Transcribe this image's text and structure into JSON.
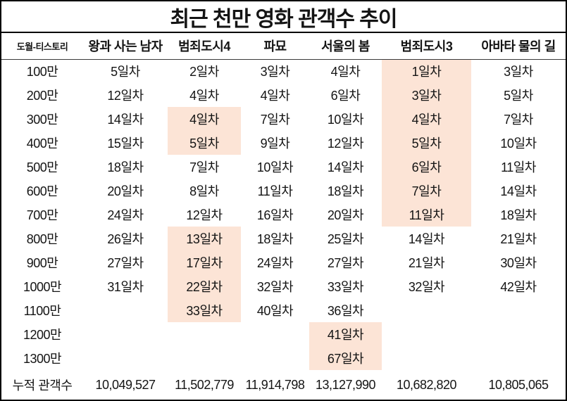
{
  "colors": {
    "highlight": "#FCE4D6",
    "border": "#000000",
    "text": "#141414"
  },
  "chart_data": {
    "type": "table",
    "title": "최근 천만 영화 관객수 추이",
    "watermark": "도월-티스토리",
    "columns": [
      "왕과 사는 남자",
      "범죄도시4",
      "파묘",
      "서울의 봄",
      "범죄도시3",
      "아바타 물의 길"
    ],
    "rows": [
      {
        "label": "100만",
        "cells": [
          "5일차",
          "2일차",
          "3일차",
          "4일차",
          "1일차",
          "3일차"
        ],
        "highlight": [
          4
        ]
      },
      {
        "label": "200만",
        "cells": [
          "12일차",
          "4일차",
          "4일차",
          "6일차",
          "3일차",
          "5일차"
        ],
        "highlight": [
          4
        ]
      },
      {
        "label": "300만",
        "cells": [
          "14일차",
          "4일차",
          "7일차",
          "10일차",
          "4일차",
          "7일차"
        ],
        "highlight": [
          1,
          4
        ]
      },
      {
        "label": "400만",
        "cells": [
          "15일차",
          "5일차",
          "9일차",
          "12일차",
          "5일차",
          "10일차"
        ],
        "highlight": [
          1,
          4
        ]
      },
      {
        "label": "500만",
        "cells": [
          "18일차",
          "7일차",
          "10일차",
          "14일차",
          "6일차",
          "11일차"
        ],
        "highlight": [
          4
        ]
      },
      {
        "label": "600만",
        "cells": [
          "20일차",
          "8일차",
          "11일차",
          "18일차",
          "7일차",
          "14일차"
        ],
        "highlight": [
          4
        ]
      },
      {
        "label": "700만",
        "cells": [
          "24일차",
          "12일차",
          "16일차",
          "20일차",
          "11일차",
          "18일차"
        ],
        "highlight": [
          4
        ]
      },
      {
        "label": "800만",
        "cells": [
          "26일차",
          "13일차",
          "18일차",
          "25일차",
          "14일차",
          "21일차"
        ],
        "highlight": [
          1
        ]
      },
      {
        "label": "900만",
        "cells": [
          "27일차",
          "17일차",
          "24일차",
          "27일차",
          "21일차",
          "30일차"
        ],
        "highlight": [
          1
        ]
      },
      {
        "label": "1000만",
        "cells": [
          "31일차",
          "22일차",
          "32일차",
          "33일차",
          "32일차",
          "42일차"
        ],
        "highlight": [
          1
        ]
      },
      {
        "label": "1100만",
        "cells": [
          "",
          "33일차",
          "40일차",
          "36일차",
          "",
          ""
        ],
        "highlight": [
          1
        ]
      },
      {
        "label": "1200만",
        "cells": [
          "",
          "",
          "",
          "41일차",
          "",
          ""
        ],
        "highlight": [
          3
        ]
      },
      {
        "label": "1300만",
        "cells": [
          "",
          "",
          "",
          "67일차",
          "",
          ""
        ],
        "highlight": [
          3
        ]
      }
    ],
    "footer": {
      "label": "누적 관객수",
      "cells": [
        "10,049,527",
        "11,502,779",
        "11,914,798",
        "13,127,990",
        "10,682,820",
        "10,805,065"
      ]
    }
  }
}
